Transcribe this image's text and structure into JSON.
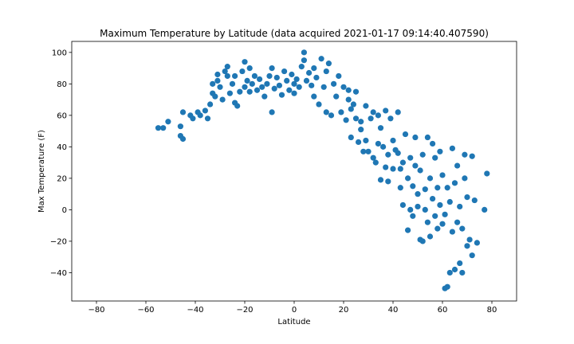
{
  "chart_data": {
    "type": "scatter",
    "title": "Maximum Temperature by Latitude (data acquired 2021-01-17 09:14:40.407590)",
    "xlabel": "Latitude",
    "ylabel": "Max Temperature (F)",
    "xlim": [
      -90,
      90
    ],
    "ylim": [
      -58,
      107
    ],
    "xticks": [
      -80,
      -60,
      -40,
      -20,
      0,
      20,
      40,
      60,
      80
    ],
    "yticks": [
      -40,
      -20,
      0,
      20,
      40,
      60,
      80,
      100
    ],
    "grid": false,
    "legend": "none",
    "marker_color": "#1f77b4",
    "series": [
      {
        "points": [
          [
            -55,
            52
          ],
          [
            -53,
            52
          ],
          [
            -51,
            56
          ],
          [
            -46,
            53
          ],
          [
            -46,
            47
          ],
          [
            -45,
            45
          ],
          [
            -45,
            62
          ],
          [
            -42,
            60
          ],
          [
            -41,
            58
          ],
          [
            -39,
            62
          ],
          [
            -38,
            60
          ],
          [
            -36,
            63
          ],
          [
            -35,
            58
          ],
          [
            -34,
            67
          ],
          [
            -33,
            74
          ],
          [
            -33,
            80
          ],
          [
            -32,
            72
          ],
          [
            -31,
            82
          ],
          [
            -31,
            86
          ],
          [
            -30,
            78
          ],
          [
            -29,
            70
          ],
          [
            -28,
            88
          ],
          [
            -27,
            91
          ],
          [
            -27,
            85
          ],
          [
            -26,
            74
          ],
          [
            -25,
            80
          ],
          [
            -24,
            68
          ],
          [
            -24,
            85
          ],
          [
            -23,
            66
          ],
          [
            -22,
            75
          ],
          [
            -21,
            88
          ],
          [
            -20,
            94
          ],
          [
            -20,
            78
          ],
          [
            -19,
            82
          ],
          [
            -18,
            90
          ],
          [
            -18,
            75
          ],
          [
            -17,
            80
          ],
          [
            -16,
            85
          ],
          [
            -15,
            76
          ],
          [
            -14,
            83
          ],
          [
            -13,
            78
          ],
          [
            -12,
            72
          ],
          [
            -11,
            80
          ],
          [
            -10,
            85
          ],
          [
            -9,
            90
          ],
          [
            -9,
            62
          ],
          [
            -8,
            77
          ],
          [
            -7,
            84
          ],
          [
            -6,
            79
          ],
          [
            -5,
            73
          ],
          [
            -4,
            88
          ],
          [
            -3,
            82
          ],
          [
            -2,
            76
          ],
          [
            -1,
            86
          ],
          [
            0,
            80
          ],
          [
            0,
            74
          ],
          [
            1,
            83
          ],
          [
            2,
            78
          ],
          [
            3,
            91
          ],
          [
            4,
            100
          ],
          [
            4,
            95
          ],
          [
            5,
            82
          ],
          [
            6,
            87
          ],
          [
            7,
            79
          ],
          [
            8,
            90
          ],
          [
            8,
            72
          ],
          [
            9,
            84
          ],
          [
            10,
            67
          ],
          [
            11,
            96
          ],
          [
            12,
            78
          ],
          [
            13,
            88
          ],
          [
            13,
            62
          ],
          [
            14,
            93
          ],
          [
            15,
            60
          ],
          [
            16,
            80
          ],
          [
            17,
            72
          ],
          [
            18,
            85
          ],
          [
            19,
            62
          ],
          [
            20,
            78
          ],
          [
            21,
            57
          ],
          [
            22,
            76
          ],
          [
            22,
            70
          ],
          [
            23,
            64
          ],
          [
            23,
            46
          ],
          [
            24,
            67
          ],
          [
            25,
            58
          ],
          [
            25,
            75
          ],
          [
            26,
            43
          ],
          [
            27,
            56
          ],
          [
            27,
            51
          ],
          [
            28,
            37
          ],
          [
            29,
            66
          ],
          [
            29,
            44
          ],
          [
            30,
            37
          ],
          [
            31,
            58
          ],
          [
            32,
            33
          ],
          [
            32,
            62
          ],
          [
            33,
            30
          ],
          [
            34,
            60
          ],
          [
            34,
            42
          ],
          [
            35,
            19
          ],
          [
            35,
            52
          ],
          [
            36,
            40
          ],
          [
            37,
            27
          ],
          [
            37,
            63
          ],
          [
            38,
            35
          ],
          [
            38,
            18
          ],
          [
            39,
            58
          ],
          [
            40,
            26
          ],
          [
            40,
            44
          ],
          [
            41,
            38
          ],
          [
            42,
            62
          ],
          [
            42,
            36
          ],
          [
            43,
            26
          ],
          [
            43,
            14
          ],
          [
            44,
            3
          ],
          [
            44,
            30
          ],
          [
            45,
            48
          ],
          [
            46,
            20
          ],
          [
            46,
            -13
          ],
          [
            47,
            33
          ],
          [
            47,
            0
          ],
          [
            48,
            15
          ],
          [
            48,
            -4
          ],
          [
            49,
            28
          ],
          [
            49,
            46
          ],
          [
            50,
            2
          ],
          [
            50,
            10
          ],
          [
            51,
            -19
          ],
          [
            51,
            25
          ],
          [
            52,
            35
          ],
          [
            52,
            -20
          ],
          [
            53,
            13
          ],
          [
            53,
            0
          ],
          [
            54,
            -8
          ],
          [
            54,
            46
          ],
          [
            55,
            -17
          ],
          [
            55,
            20
          ],
          [
            56,
            7
          ],
          [
            56,
            42
          ],
          [
            57,
            -4
          ],
          [
            57,
            33
          ],
          [
            58,
            14
          ],
          [
            58,
            -12
          ],
          [
            59,
            3
          ],
          [
            59,
            37
          ],
          [
            60,
            -9
          ],
          [
            60,
            22
          ],
          [
            61,
            -50
          ],
          [
            61,
            -3
          ],
          [
            62,
            14
          ],
          [
            62,
            -49
          ],
          [
            63,
            5
          ],
          [
            63,
            -40
          ],
          [
            64,
            39
          ],
          [
            64,
            -14
          ],
          [
            65,
            -38
          ],
          [
            65,
            17
          ],
          [
            66,
            -8
          ],
          [
            66,
            28
          ],
          [
            67,
            -34
          ],
          [
            67,
            2
          ],
          [
            68,
            -12
          ],
          [
            68,
            -40
          ],
          [
            69,
            20
          ],
          [
            69,
            35
          ],
          [
            70,
            -23
          ],
          [
            70,
            8
          ],
          [
            71,
            -19
          ],
          [
            72,
            -29
          ],
          [
            72,
            34
          ],
          [
            73,
            6
          ],
          [
            74,
            -21
          ],
          [
            77,
            0
          ],
          [
            78,
            23
          ]
        ]
      }
    ]
  }
}
